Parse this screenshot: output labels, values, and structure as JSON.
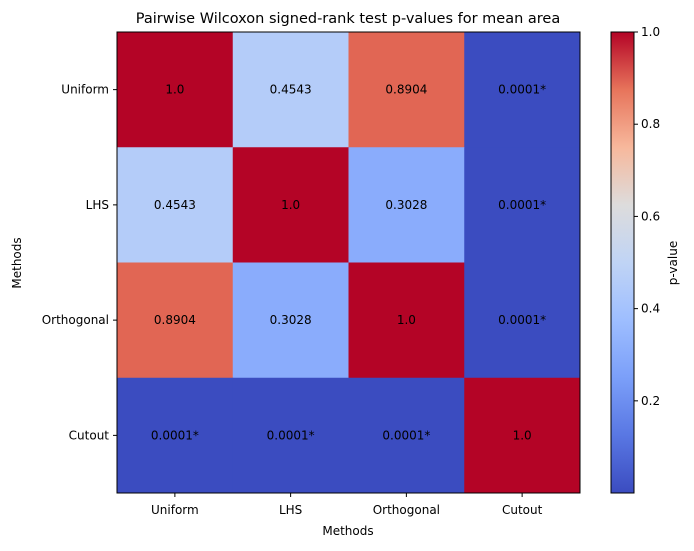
{
  "chart_data": {
    "type": "heatmap",
    "title": "Pairwise Wilcoxon signed-rank test p-values for mean area",
    "xlabel": "Methods",
    "ylabel": "Methods",
    "categories": [
      "Uniform",
      "LHS",
      "Orthogonal",
      "Cutout"
    ],
    "values": [
      [
        1.0,
        0.4543,
        0.8904,
        0.0001
      ],
      [
        0.4543,
        1.0,
        0.3028,
        0.0001
      ],
      [
        0.8904,
        0.3028,
        1.0,
        0.0001
      ],
      [
        0.0001,
        0.0001,
        0.0001,
        1.0
      ]
    ],
    "labels": [
      [
        "1.0",
        "0.4543",
        "0.8904",
        "0.0001*"
      ],
      [
        "0.4543",
        "1.0",
        "0.3028",
        "0.0001*"
      ],
      [
        "0.8904",
        "0.3028",
        "1.0",
        "0.0001*"
      ],
      [
        "0.0001*",
        "0.0001*",
        "0.0001*",
        "1.0"
      ]
    ],
    "colormap": "coolwarm",
    "vmin": 0.0001,
    "vmax": 1.0,
    "colorbar": {
      "label": "p-value",
      "ticks": [
        0.2,
        0.4,
        0.6,
        0.8,
        1.0
      ],
      "tick_labels": [
        "0.2",
        "0.4",
        "0.6",
        "0.8",
        "1.0"
      ]
    }
  }
}
